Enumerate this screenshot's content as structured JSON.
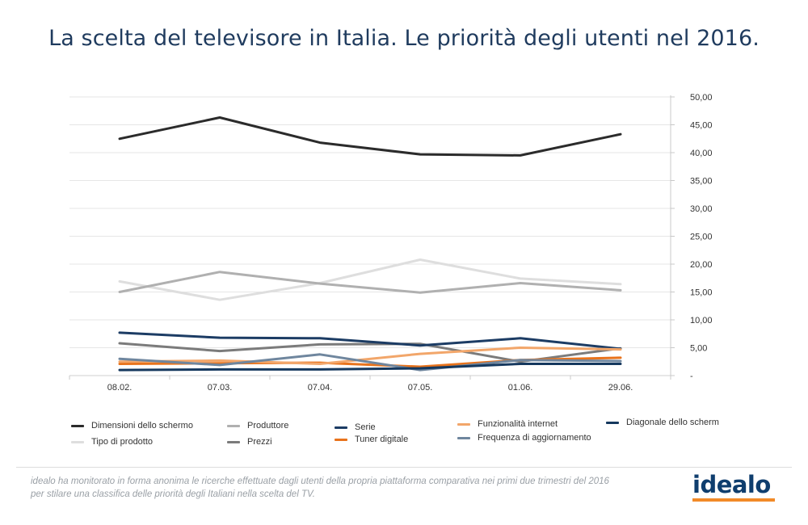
{
  "title": "La scelta del televisore in Italia. Le priorità degli utenti nel 2016.",
  "chart_data": {
    "type": "line",
    "x": [
      "08.02.",
      "07.03.",
      "07.04.",
      "07.05.",
      "01.06.",
      "29.06."
    ],
    "ylim": [
      0,
      50
    ],
    "yticks": [
      "-",
      "5,00",
      "10,00",
      "15,00",
      "20,00",
      "25,00",
      "30,00",
      "35,00",
      "40,00",
      "45,00",
      "50,00"
    ],
    "y_axis_side": "right",
    "grid": true,
    "legend_position": "bottom",
    "series": [
      {
        "name": "Dimensioni dello schermo",
        "color": "#2b2b2b",
        "values": [
          42.5,
          46.3,
          41.8,
          39.7,
          39.5,
          43.3
        ]
      },
      {
        "name": "Tipo di prodotto",
        "color": "#dedede",
        "values": [
          16.9,
          13.6,
          16.6,
          20.8,
          17.4,
          16.4
        ]
      },
      {
        "name": "Produttore",
        "color": "#b0b0b0",
        "values": [
          15.0,
          18.6,
          16.5,
          14.9,
          16.6,
          15.3
        ]
      },
      {
        "name": "Prezzi",
        "color": "#7b7b7b",
        "values": [
          5.8,
          4.4,
          5.6,
          5.7,
          2.5,
          4.9
        ]
      },
      {
        "name": "Serie",
        "color": "#1c3c64",
        "values": [
          7.7,
          6.8,
          6.7,
          5.4,
          6.7,
          4.8
        ]
      },
      {
        "name": "Tuner digitale",
        "color": "#e8731c",
        "values": [
          2.1,
          2.2,
          2.3,
          1.6,
          2.8,
          3.2
        ]
      },
      {
        "name": "Funzionalità internet",
        "color": "#f2a66a",
        "values": [
          2.5,
          2.7,
          2.1,
          3.9,
          5.0,
          4.7
        ]
      },
      {
        "name": "Frequenza di aggiornamento",
        "color": "#6f869e",
        "values": [
          3.0,
          1.9,
          3.8,
          1.0,
          2.8,
          2.6
        ]
      },
      {
        "name": "Diagonale dello scherm",
        "color": "#15385e",
        "values": [
          1.0,
          1.1,
          1.1,
          1.3,
          2.1,
          2.1
        ]
      }
    ]
  },
  "footer": {
    "note_line1": "idealo ha monitorato in forma anonima le ricerche effettuate dagli utenti della propria piattaforma comparativa nei primi due trimestri del 2016",
    "note_line2": "per stilare una classifica delle priorità degli Italiani nella scelta del TV.",
    "logo": "idealo",
    "logo_colors": {
      "text": "#0f3e6e",
      "bar": "#f28a28"
    }
  }
}
